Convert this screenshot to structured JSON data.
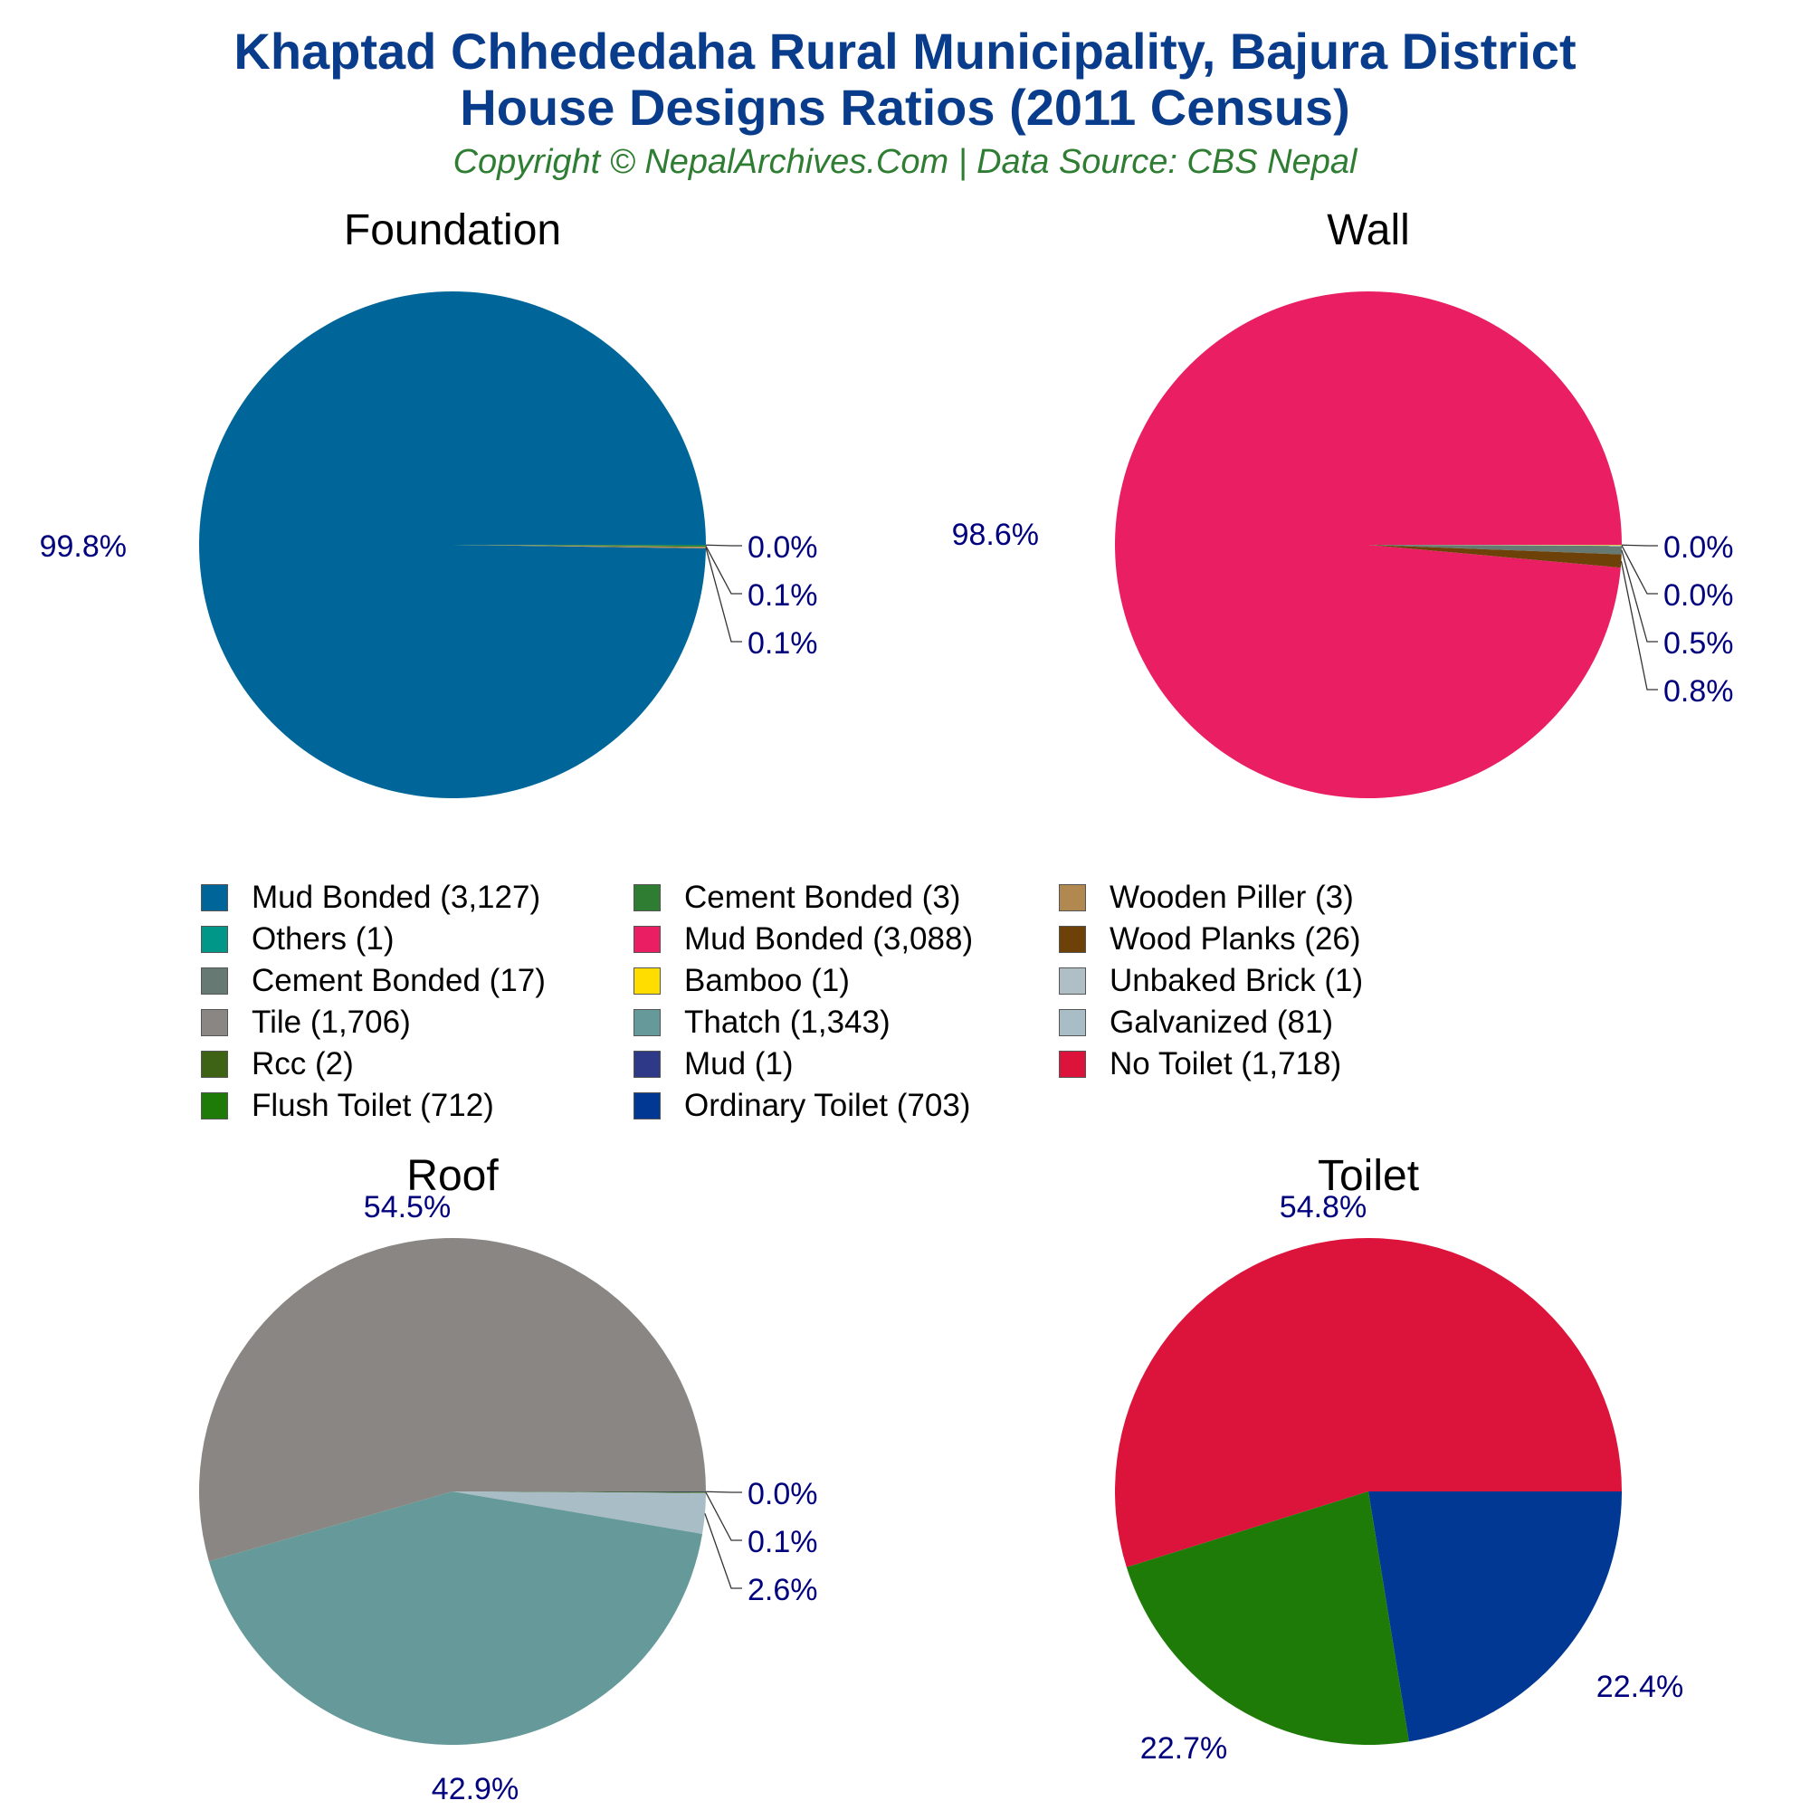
{
  "header": {
    "title_line1": "Khaptad Chhededaha Rural Municipality, Bajura District",
    "title_line2": "House Designs Ratios (2011 Census)",
    "subtitle": "Copyright © NepalArchives.Com | Data Source: CBS Nepal"
  },
  "chart_data": [
    {
      "type": "pie",
      "title": "Foundation",
      "slices": [
        {
          "label": "Mud Bonded",
          "value": 3127,
          "percent_label": "99.8%",
          "color": "#006699"
        },
        {
          "label": "Others",
          "value": 1,
          "percent_label": "0.0%",
          "color": "#009688"
        },
        {
          "label": "Cement Bonded",
          "value": 3,
          "percent_label": "0.1%",
          "color": "#2e7d32"
        },
        {
          "label": "Wooden Piller",
          "value": 3,
          "percent_label": "0.1%",
          "color": "#b08850"
        }
      ]
    },
    {
      "type": "pie",
      "title": "Wall",
      "slices": [
        {
          "label": "Mud Bonded",
          "value": 3088,
          "percent_label": "98.6%",
          "color": "#e91e63"
        },
        {
          "label": "Bamboo",
          "value": 1,
          "percent_label": "0.0%",
          "color": "#ffdd00"
        },
        {
          "label": "Unbaked Brick",
          "value": 1,
          "percent_label": "0.0%",
          "color": "#b0bec5"
        },
        {
          "label": "Cement Bonded",
          "value": 17,
          "percent_label": "0.5%",
          "color": "#667a73"
        },
        {
          "label": "Wood Planks",
          "value": 26,
          "percent_label": "0.8%",
          "color": "#6d4107"
        }
      ]
    },
    {
      "type": "pie",
      "title": "Roof",
      "slices": [
        {
          "label": "Tile",
          "value": 1706,
          "percent_label": "54.5%",
          "color": "#8a8683"
        },
        {
          "label": "Mud",
          "value": 1,
          "percent_label": "0.0%",
          "color": "#2e3a87"
        },
        {
          "label": "Rcc",
          "value": 2,
          "percent_label": "0.1%",
          "color": "#3e6315"
        },
        {
          "label": "Galvanized",
          "value": 81,
          "percent_label": "2.6%",
          "color": "#a9bdc6"
        },
        {
          "label": "Thatch",
          "value": 1343,
          "percent_label": "42.9%",
          "color": "#669999"
        }
      ]
    },
    {
      "type": "pie",
      "title": "Toilet",
      "slices": [
        {
          "label": "No Toilet",
          "value": 1718,
          "percent_label": "54.8%",
          "color": "#dc143c"
        },
        {
          "label": "Ordinary Toilet",
          "value": 703,
          "percent_label": "22.4%",
          "color": "#003893"
        },
        {
          "label": "Flush Toilet",
          "value": 712,
          "percent_label": "22.7%",
          "color": "#1e7b08"
        }
      ]
    }
  ],
  "legend": [
    {
      "label": "Mud Bonded (3,127)",
      "color": "#006699"
    },
    {
      "label": "Others (1)",
      "color": "#009688"
    },
    {
      "label": "Cement Bonded (17)",
      "color": "#667a73"
    },
    {
      "label": "Tile (1,706)",
      "color": "#8a8683"
    },
    {
      "label": "Rcc (2)",
      "color": "#3e6315"
    },
    {
      "label": "Flush Toilet (712)",
      "color": "#1e7b08"
    },
    {
      "label": "Cement Bonded (3)",
      "color": "#2e7d32"
    },
    {
      "label": "Mud Bonded (3,088)",
      "color": "#e91e63"
    },
    {
      "label": "Bamboo (1)",
      "color": "#ffdd00"
    },
    {
      "label": "Thatch (1,343)",
      "color": "#669999"
    },
    {
      "label": "Mud (1)",
      "color": "#2e3a87"
    },
    {
      "label": "Ordinary Toilet (703)",
      "color": "#003893"
    },
    {
      "label": "Wooden Piller (3)",
      "color": "#b08850"
    },
    {
      "label": "Wood Planks (26)",
      "color": "#6d4107"
    },
    {
      "label": "Unbaked Brick (1)",
      "color": "#b0bec5"
    },
    {
      "label": "Galvanized (81)",
      "color": "#a9bdc6"
    },
    {
      "label": "No Toilet (1,718)",
      "color": "#dc143c"
    }
  ]
}
